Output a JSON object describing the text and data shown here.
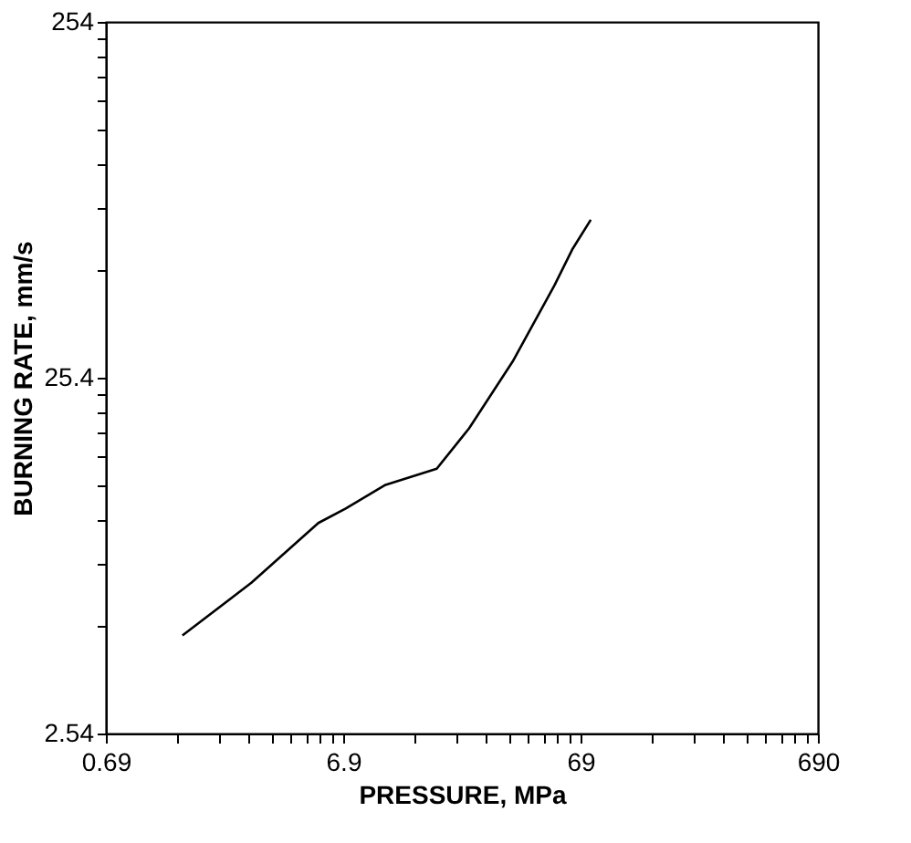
{
  "chart_data": {
    "type": "line",
    "xlabel": "PRESSURE, MPa",
    "ylabel": "BURNING RATE, mm/s",
    "log": "xy",
    "grid": false,
    "marker": "none",
    "line_style": "solid",
    "x": [
      1.45,
      2.83,
      5.42,
      7.07,
      10.4,
      17.1,
      23.4,
      35.7,
      53.6,
      63.9,
      76.2
    ],
    "series": [
      {
        "color": "#000000",
        "values": [
          4.79,
          6.74,
          9.92,
          10.9,
          12.7,
          14.1,
          18.3,
          28.2,
          46.2,
          58.5,
          70.6
        ]
      }
    ],
    "xlim": [
      0.69,
      690
    ],
    "ylim": [
      2.54,
      254
    ],
    "xticks": [
      0.69,
      {
        "value": 1.38,
        "label": null
      },
      {
        "value": 2.07,
        "label": null
      },
      {
        "value": 2.76,
        "label": null
      },
      {
        "value": 3.45,
        "label": null
      },
      {
        "value": 4.14,
        "label": null
      },
      {
        "value": 4.83,
        "label": null
      },
      {
        "value": 5.52,
        "label": null
      },
      {
        "value": 6.21,
        "label": null
      },
      6.9,
      {
        "value": 13.8,
        "label": null
      },
      {
        "value": 20.7,
        "label": null
      },
      {
        "value": 27.6,
        "label": null
      },
      {
        "value": 34.5,
        "label": null
      },
      {
        "value": 41.4,
        "label": null
      },
      {
        "value": 48.3,
        "label": null
      },
      {
        "value": 55.2,
        "label": null
      },
      {
        "value": 62.1,
        "label": null
      },
      69,
      {
        "value": 138,
        "label": null
      },
      {
        "value": 207,
        "label": null
      },
      {
        "value": 276,
        "label": null
      },
      {
        "value": 345,
        "label": null
      },
      {
        "value": 414,
        "label": null
      },
      {
        "value": 483,
        "label": null
      },
      {
        "value": 552,
        "label": null
      },
      {
        "value": 621,
        "label": null
      },
      690
    ],
    "yticks": [
      2.54,
      {
        "value": 5.08,
        "label": null
      },
      {
        "value": 7.62,
        "label": null
      },
      {
        "value": 10.16,
        "label": null
      },
      {
        "value": 12.7,
        "label": null
      },
      {
        "value": 15.24,
        "label": null
      },
      {
        "value": 17.78,
        "label": null
      },
      {
        "value": 20.32,
        "label": null
      },
      {
        "value": 22.86,
        "label": null
      },
      25.4,
      {
        "value": 50.8,
        "label": null
      },
      {
        "value": 76.2,
        "label": null
      },
      {
        "value": 101.6,
        "label": null
      },
      {
        "value": 127,
        "label": null
      },
      {
        "value": 152.4,
        "label": null
      },
      {
        "value": 177.8,
        "label": null
      },
      {
        "value": 203.2,
        "label": null
      },
      {
        "value": 228.6,
        "label": null
      },
      254
    ]
  }
}
